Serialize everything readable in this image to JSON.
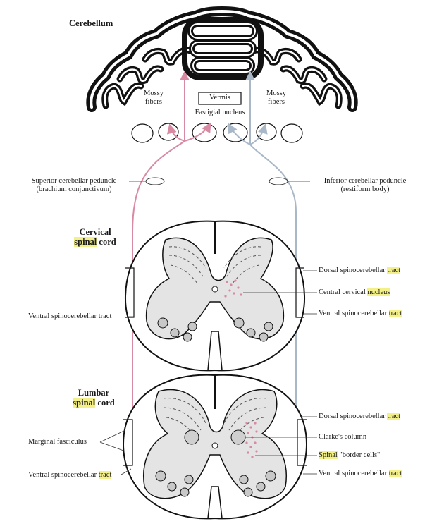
{
  "title": "Cerebellum",
  "labels": {
    "vermis": "Vermis",
    "fastigial_nucleus": "Fastigial nucleus",
    "mossy_fibers_left": [
      "Mossy",
      "fibers"
    ],
    "mossy_fibers_right": [
      "Mossy",
      "fibers"
    ],
    "superior_peduncle": [
      "Superior cerebellar peduncle",
      "(brachium conjunctivum)"
    ],
    "inferior_peduncle": [
      "Inferior cerebellar peduncle",
      "(restiform body)"
    ],
    "cervical_title": {
      "line1": "Cervical",
      "hl": "spinal",
      "rest": " cord"
    },
    "lumbar_title": {
      "line1": "Lumbar",
      "hl": "spinal",
      "rest": " cord"
    },
    "cervical_left": "Ventral spinocerebellar tract",
    "cervical_right": [
      {
        "pre": "Dorsal spinocerebellar ",
        "hl": "tract",
        "post": ""
      },
      {
        "pre": "Central cervical ",
        "hl": "nucleus",
        "post": ""
      },
      {
        "pre": "Ventral spinocerebellar ",
        "hl": "tract",
        "post": ""
      }
    ],
    "lumbar_left": [
      {
        "pre": "Marginal fasciculus",
        "hl": "",
        "post": ""
      },
      {
        "pre": "Ventral spinocerebellar ",
        "hl": "tract",
        "post": ""
      }
    ],
    "lumbar_right": [
      {
        "pre": "Dorsal spinocerebellar ",
        "hl": "tract",
        "post": ""
      },
      {
        "pre": "Clarke's column",
        "hl": "",
        "post": ""
      },
      {
        "pre": "",
        "hl": "Spinal",
        "post": " \"border cells\""
      },
      {
        "pre": "Ventral spinocerebellar ",
        "hl": "tract",
        "post": ""
      }
    ]
  },
  "colors": {
    "ventral_pathway": "#d98aa3",
    "dorsal_pathway": "#a9b8c8",
    "gray_matter": "#e4e4e4",
    "highlight": "#f3f08a"
  }
}
